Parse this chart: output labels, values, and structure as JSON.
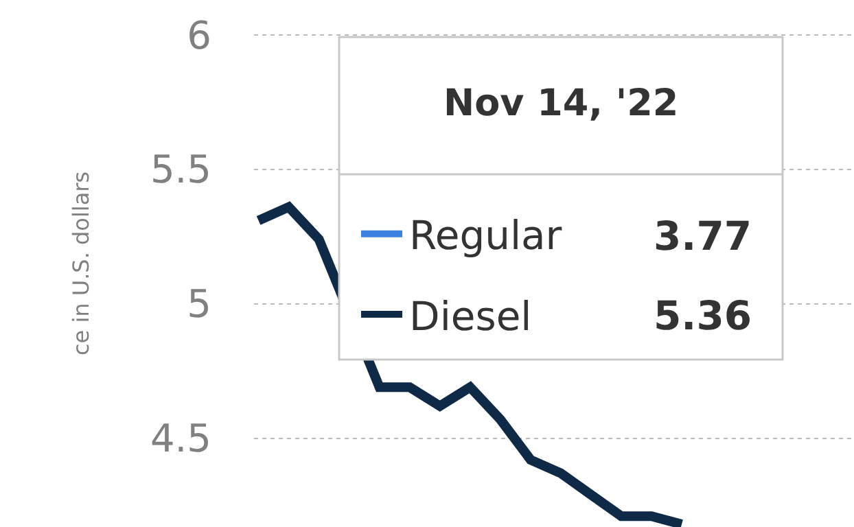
{
  "chart_data": {
    "type": "line",
    "ylabel": "ce in U.S. dollars",
    "categories": [
      null,
      null,
      null,
      null,
      null,
      null,
      null,
      null,
      null,
      null,
      null,
      null,
      null,
      null,
      null,
      null,
      null,
      null,
      null,
      null
    ],
    "series": [
      {
        "name": "Regular",
        "color": "#3b82e0",
        "values": [
          null,
          null,
          null,
          null,
          null,
          null,
          null,
          null,
          null,
          null,
          null,
          null,
          null,
          null,
          null,
          null,
          null,
          null,
          null,
          null
        ]
      },
      {
        "name": "Diesel",
        "color": "#0f2a47",
        "values": [
          5.31,
          5.36,
          5.24,
          null,
          4.69,
          4.69,
          4.62,
          4.69,
          4.57,
          4.42,
          4.37,
          4.29,
          4.21,
          4.21,
          4.18,
          null,
          null,
          null,
          null,
          null
        ]
      }
    ],
    "ylim": [
      4.17,
      6.13
    ],
    "yticks": [
      4.5,
      5,
      5.5,
      6
    ],
    "grid": "y",
    "legend": "left",
    "annotations": [
      "Nov 14, '22",
      "3.77",
      "5.36"
    ]
  }
}
